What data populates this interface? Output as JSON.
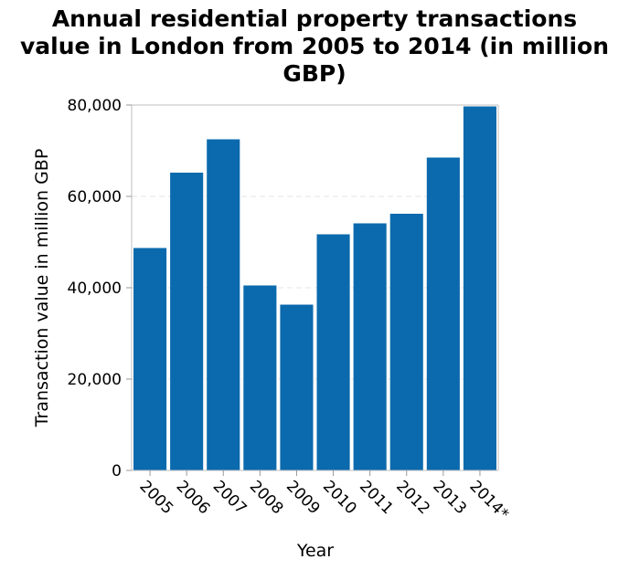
{
  "chart_data": {
    "type": "bar",
    "title_lines": [
      "Annual residential property transactions",
      "value in London from 2005 to 2014 (in million",
      "GBP)"
    ],
    "xlabel": "Year",
    "ylabel": "Transaction value in million GBP",
    "categories": [
      "2005",
      "2006",
      "2007",
      "2008",
      "2009",
      "2010",
      "2011",
      "2012",
      "2013",
      "2014*"
    ],
    "values": [
      48700,
      65200,
      72500,
      40500,
      36300,
      51700,
      54100,
      56200,
      68500,
      79700
    ],
    "ylim": [
      0,
      80000
    ],
    "yticks": [
      0,
      20000,
      40000,
      60000,
      80000
    ],
    "ytick_labels": [
      "0",
      "20,000",
      "40,000",
      "60,000",
      "80,000"
    ],
    "grid": true,
    "bar_color": "#0b6aad",
    "grid_color": "#e6e6e6",
    "axis_color": "#bfbfbf"
  }
}
